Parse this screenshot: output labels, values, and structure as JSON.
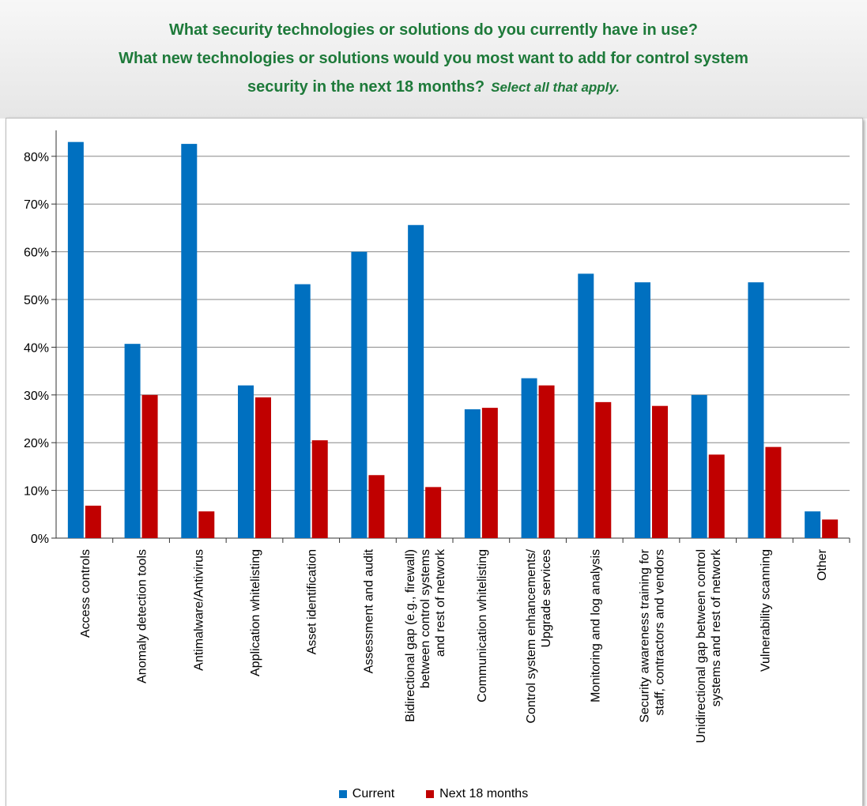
{
  "header": {
    "line1": "What security technologies or solutions do you currently have in use?",
    "line2": "What new technologies or solutions would you most want to add for control system",
    "line3": "security in the next 18 months?",
    "line3_emphasis": "Select all that apply."
  },
  "colors": {
    "current": "#0070c0",
    "next": "#c00000",
    "title": "#1e7a3a",
    "grid": "#888888"
  },
  "chart_data": {
    "type": "bar",
    "title": "What security technologies or solutions do you currently have in use? What new technologies or solutions would you most want to add for control system security in the next 18 months? Select all that apply.",
    "xlabel": "",
    "ylabel": "",
    "ylim": [
      0,
      85
    ],
    "yticks": [
      0,
      10,
      20,
      30,
      40,
      50,
      60,
      70,
      80
    ],
    "ytick_labels": [
      "0%",
      "10%",
      "20%",
      "30%",
      "40%",
      "50%",
      "60%",
      "70%",
      "80%"
    ],
    "grid": true,
    "legend_position": "bottom",
    "categories": [
      [
        "Access controls"
      ],
      [
        "Anomaly detection tools"
      ],
      [
        "Antimalware/Antivirus"
      ],
      [
        "Application whitelisting"
      ],
      [
        "Asset identification"
      ],
      [
        "Assessment and audit"
      ],
      [
        "Bidirectional gap (e.g., firewall)",
        "between control systems",
        "and rest of network"
      ],
      [
        "Communication whitelisting"
      ],
      [
        "Control system enhancements/",
        "Upgrade services"
      ],
      [
        "Monitoring and log analysis"
      ],
      [
        "Security awareness training for",
        "staff, contractors and vendors"
      ],
      [
        "Unidirectional gap between control",
        "systems and rest of network"
      ],
      [
        "Vulnerability scanning"
      ],
      [
        "Other"
      ]
    ],
    "series": [
      {
        "name": "Current",
        "values": [
          83,
          40.7,
          82.6,
          32,
          53.2,
          60,
          65.6,
          27,
          33.5,
          55.4,
          53.6,
          30,
          53.6,
          5.6
        ]
      },
      {
        "name": "Next 18 months",
        "values": [
          6.8,
          30,
          5.6,
          29.5,
          20.5,
          13.2,
          10.7,
          27.3,
          32,
          28.5,
          27.7,
          17.5,
          19.1,
          3.9
        ]
      }
    ]
  }
}
